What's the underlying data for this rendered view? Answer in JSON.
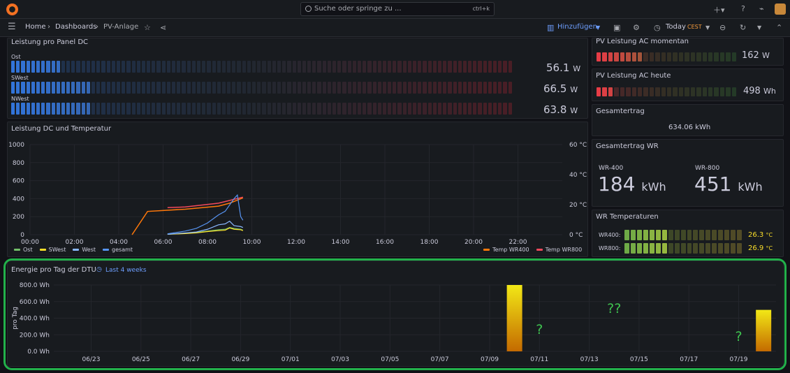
{
  "topbar": {
    "search_placeholder": "Suche oder springe zu ...",
    "search_shortcut": "ctrl+k"
  },
  "nav": {
    "breadcrumbs": [
      "Home",
      "Dashboards",
      "PV-Anlage"
    ],
    "separator": "›",
    "add_label": "Hinzufügen",
    "time_label": "Today",
    "timezone": "CEST"
  },
  "panels": {
    "dc": {
      "title": "Leistung pro Panel DC",
      "rows": [
        {
          "label": "Ost",
          "value": "56.1",
          "unit": "W",
          "fill": 0.1
        },
        {
          "label": "SWest",
          "value": "66.5",
          "unit": "W",
          "fill": 0.16
        },
        {
          "label": "NWest",
          "value": "63.8",
          "unit": "W",
          "fill": 0.16
        }
      ]
    },
    "ac_now": {
      "title": "PV Leistung AC momentan",
      "value": "162",
      "unit": "W",
      "fill": 0.33
    },
    "ac_today": {
      "title": "PV Leistung AC heute",
      "value": "498",
      "unit": "Wh",
      "fill": 0.1
    },
    "total": {
      "title": "Gesamtertrag",
      "value": "634.06 kWh"
    },
    "wr_total": {
      "title": "Gesamtertrag WR",
      "items": [
        {
          "label": "WR-400",
          "value": "184",
          "unit": "kWh"
        },
        {
          "label": "WR-800",
          "value": "451",
          "unit": "kWh"
        }
      ]
    },
    "wr_temp": {
      "title": "WR Temperaturen",
      "rows": [
        {
          "label": "WR400:",
          "value": "26.3",
          "unit": "°C",
          "fill": 0.37
        },
        {
          "label": "WR800:",
          "value": "26.9",
          "unit": "°C",
          "fill": 0.37
        }
      ]
    }
  },
  "chart_data": [
    {
      "type": "line",
      "title": "Leistung DC und Temperatur",
      "x_ticks": [
        "00:00",
        "02:00",
        "04:00",
        "06:00",
        "08:00",
        "10:00",
        "12:00",
        "14:00",
        "16:00",
        "18:00",
        "20:00",
        "22:00"
      ],
      "y_ticks": [
        "0",
        "200",
        "400",
        "600",
        "800",
        "1000"
      ],
      "ylim": [
        0,
        1000
      ],
      "y2_ticks": [
        "0 °C",
        "20 °C",
        "40 °C",
        "60 °C"
      ],
      "y2lim": [
        0,
        60
      ],
      "series": [
        {
          "name": "Ost",
          "color": "#73bf69",
          "x": [
            6.2,
            7,
            7.5,
            8,
            8.5,
            8.8,
            9,
            9.2,
            9.5,
            9.6
          ],
          "y": [
            5,
            15,
            25,
            40,
            55,
            60,
            80,
            70,
            60,
            50
          ]
        },
        {
          "name": "SWest",
          "color": "#fade2a",
          "x": [
            6.2,
            7,
            7.5,
            8,
            8.5,
            8.8,
            9,
            9.2,
            9.5,
            9.6
          ],
          "y": [
            5,
            12,
            20,
            35,
            45,
            50,
            75,
            60,
            55,
            45
          ]
        },
        {
          "name": "West",
          "color": "#8ab8ff",
          "x": [
            6.2,
            7,
            7.5,
            8,
            8.5,
            8.8,
            9,
            9.2,
            9.5,
            9.6
          ],
          "y": [
            5,
            20,
            30,
            60,
            110,
            120,
            150,
            100,
            90,
            80
          ]
        },
        {
          "name": "gesamt",
          "color": "#5794f2",
          "x": [
            6.2,
            7,
            7.5,
            8,
            8.5,
            8.8,
            9,
            9.2,
            9.35,
            9.5,
            9.6
          ],
          "y": [
            10,
            40,
            70,
            130,
            220,
            260,
            330,
            400,
            440,
            200,
            160
          ]
        }
      ],
      "series_y2": [
        {
          "name": "Temp WR400",
          "color": "#ff780a",
          "x": [
            4.6,
            5.3,
            7,
            8.5,
            9,
            9.6
          ],
          "y": [
            0,
            15.5,
            17,
            19,
            21,
            24.5
          ]
        },
        {
          "name": "Temp WR800",
          "color": "#f2495c",
          "x": [
            6.2,
            7,
            8.5,
            9.6
          ],
          "y": [
            18,
            18.5,
            21,
            25
          ]
        }
      ]
    },
    {
      "type": "bar",
      "title": "Energie pro Tag der DTU",
      "time_range": "Last 4 weeks",
      "ylabel": "pro Tag",
      "y_ticks": [
        "0.0 Wh",
        "200.0 Wh",
        "400.0 Wh",
        "600.0 Wh",
        "800.0 Wh"
      ],
      "ylim": [
        0,
        800
      ],
      "x_ticks": [
        "06/23",
        "06/25",
        "06/27",
        "06/29",
        "07/01",
        "07/03",
        "07/05",
        "07/07",
        "07/09",
        "07/11",
        "07/13",
        "07/15",
        "07/17",
        "07/19"
      ],
      "bars": [
        {
          "date": "07/10",
          "value": 800
        },
        {
          "date": "07/20",
          "value": 500
        }
      ],
      "annotations": [
        {
          "text": "?",
          "date": "07/11"
        },
        {
          "text": "??",
          "date": "07/14"
        },
        {
          "text": "?",
          "date": "07/19"
        }
      ]
    }
  ],
  "colors": {
    "accent": "#6e9fff",
    "highlight": "#22b04a",
    "annotation": "#3fc34f"
  }
}
